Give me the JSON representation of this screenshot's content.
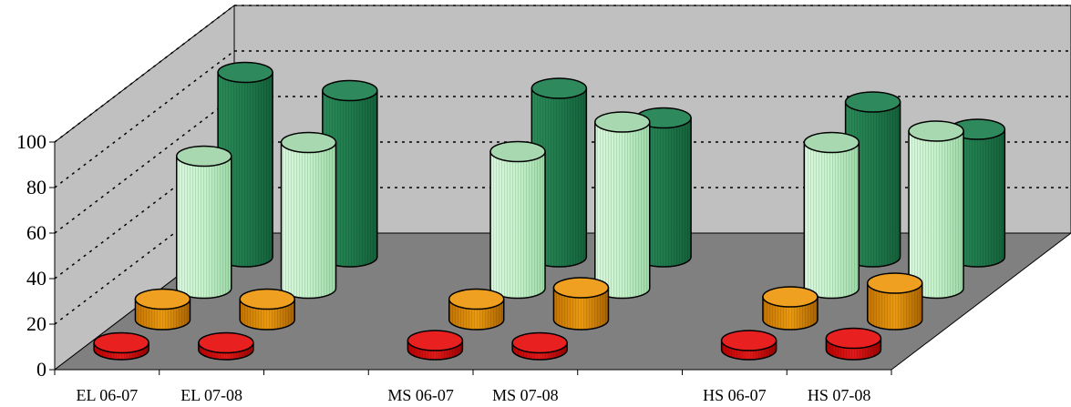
{
  "chart_data": {
    "type": "bar",
    "style": "3d-cylinder",
    "categories": [
      "EL 06-07",
      "EL 07-08",
      "MS 06-07",
      "MS 07-08",
      "HS 06-07",
      "HS 07-08"
    ],
    "series": [
      {
        "values": [
          3,
          3,
          4,
          3,
          4,
          5
        ],
        "color": "#d40000"
      },
      {
        "values": [
          9,
          9,
          9,
          14,
          10,
          16
        ],
        "color": "#e08a00"
      },
      {
        "values": [
          58,
          64,
          60,
          73,
          64,
          69
        ],
        "color": "#bff0c8"
      },
      {
        "values": [
          81,
          73,
          74,
          61,
          68,
          56
        ],
        "color": "#1e7a4c"
      }
    ],
    "ylim": [
      0,
      100
    ],
    "yticks": [
      0,
      20,
      40,
      60,
      80,
      100
    ],
    "grid": true,
    "wall_color": "#c0c0c0",
    "floor_color": "#808080"
  }
}
